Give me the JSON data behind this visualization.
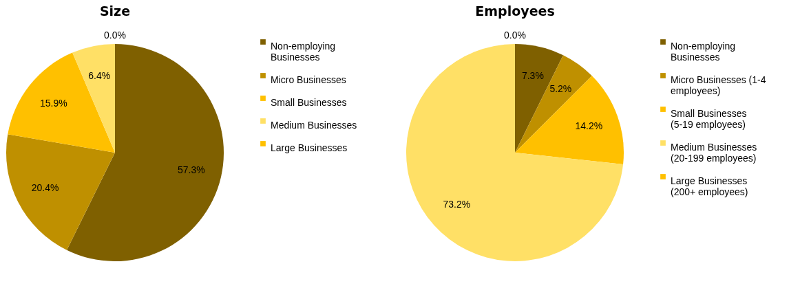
{
  "chart_data": [
    {
      "type": "pie",
      "title": "Size",
      "categories": [
        "Non-employing Businesses",
        "Micro Businesses",
        "Small Businesses",
        "Medium Businesses",
        "Large Businesses"
      ],
      "values": [
        57.3,
        20.4,
        15.9,
        6.4,
        0.0
      ],
      "value_labels": [
        "57.3%",
        "20.4%",
        "15.9%",
        "6.4%",
        "0.0%"
      ],
      "colors": [
        "#7f6000",
        "#bf9000",
        "#ffc000",
        "#ffe066",
        "#ffc000"
      ],
      "legend": "right"
    },
    {
      "type": "pie",
      "title": "Employees",
      "categories": [
        "Non-employing Businesses",
        "Micro Businesses (1-4 employees)",
        "Small Businesses (5-19 employees)",
        "Medium Businesses (20-199 employees)",
        "Large Businesses (200+ employees)"
      ],
      "values": [
        7.3,
        5.2,
        14.2,
        73.2,
        0.0
      ],
      "value_labels": [
        "7.3%",
        "5.2%",
        "14.2%",
        "73.2%",
        "0.0%"
      ],
      "colors": [
        "#7f6000",
        "#bf9000",
        "#ffc000",
        "#ffe066",
        "#ffc000"
      ],
      "legend": "right"
    }
  ]
}
